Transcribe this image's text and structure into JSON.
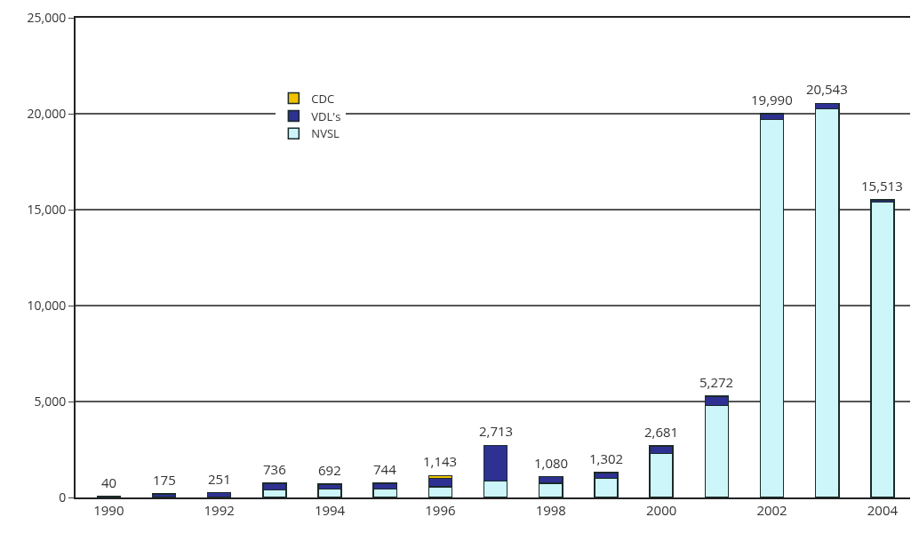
{
  "chart_data": {
    "type": "bar",
    "stacked": true,
    "categories": [
      "1990",
      null,
      "1992",
      null,
      "1994",
      null,
      "1996",
      null,
      "1998",
      null,
      "2000",
      null,
      "2002",
      null,
      "2004"
    ],
    "series": [
      {
        "name": "NVSL",
        "color": "#ccf6f9",
        "values": [
          null,
          null,
          null,
          400,
          450,
          450,
          550,
          850,
          750,
          1000,
          2300,
          4800,
          19700,
          20250,
          15400
        ]
      },
      {
        "name": "VDL's",
        "color": "#2e3192",
        "values": [
          40,
          175,
          251,
          336,
          242,
          294,
          450,
          1863,
          330,
          302,
          381,
          472,
          290,
          293,
          113
        ]
      },
      {
        "name": "CDC",
        "color": "#f2c200",
        "values": [
          null,
          null,
          null,
          null,
          null,
          null,
          143,
          null,
          null,
          null,
          null,
          null,
          null,
          null,
          null
        ]
      }
    ],
    "totals": [
      "40",
      "175",
      "251",
      "736",
      "692",
      "744",
      "1,143",
      "2,713",
      "1,080",
      "1,302",
      "2,681",
      "5,272",
      "19,990",
      "20,543",
      "15,513"
    ],
    "ylim": [
      0,
      25000
    ],
    "yticks": [
      0,
      {
        "value": 5000,
        "label": "5,000"
      },
      {
        "value": 10000,
        "label": "10,000"
      },
      {
        "value": 15000,
        "label": "15,000"
      },
      {
        "value": 20000,
        "label": "20,000"
      },
      {
        "value": 25000,
        "label": "25,000"
      }
    ],
    "grid": "y",
    "legend": "top left"
  }
}
